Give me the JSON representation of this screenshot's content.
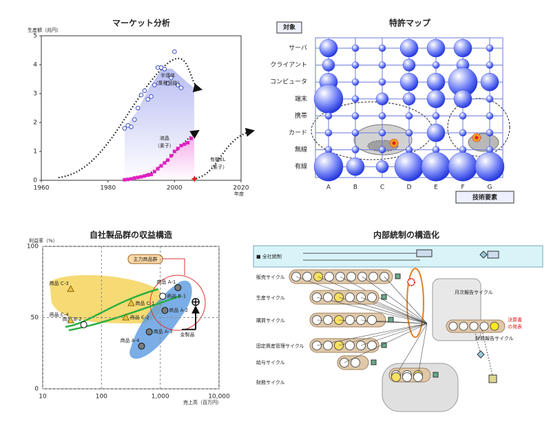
{
  "chart_data": [
    {
      "type": "scatter",
      "title": "マーケット分析",
      "y_label": "生産額（兆円）",
      "x_label": "年度",
      "xlim": [
        1960,
        2020
      ],
      "xticks": [
        1960,
        1980,
        2000,
        2020
      ],
      "ylim": [
        0,
        5
      ],
      "yticks": [
        0,
        1,
        2,
        3,
        4,
        5
      ],
      "grid": false,
      "series": [
        {
          "label": [
            "半導体",
            "（集積回路）"
          ],
          "marker": "circle-open",
          "color": "#3b4fc4",
          "x": [
            1985,
            1986,
            1987,
            1988,
            1989,
            1990,
            1991,
            1992,
            1993,
            1994,
            1995,
            1996,
            1997,
            1998,
            1999,
            2000,
            2001,
            2002
          ],
          "values": [
            1.8,
            1.9,
            1.85,
            2.1,
            2.5,
            2.95,
            3.1,
            2.8,
            2.9,
            3.3,
            3.9,
            3.9,
            3.85,
            3.35,
            3.55,
            4.45,
            3.3,
            3.2
          ]
        },
        {
          "label": [
            "液晶",
            "（素子）"
          ],
          "marker": "square",
          "color": "#e020c0",
          "x": [
            1985,
            1986,
            1987,
            1988,
            1989,
            1990,
            1991,
            1992,
            1993,
            1994,
            1995,
            1996,
            1997,
            1998,
            1999,
            2000,
            2001,
            2002,
            2003,
            2004,
            2005
          ],
          "values": [
            0.02,
            0.03,
            0.05,
            0.08,
            0.1,
            0.12,
            0.15,
            0.18,
            0.2,
            0.3,
            0.4,
            0.5,
            0.6,
            0.7,
            0.85,
            1.0,
            1.1,
            1.2,
            1.25,
            1.3,
            1.45
          ]
        },
        {
          "label": [
            "有機EL",
            "（素子）"
          ],
          "marker": "star",
          "color": "#e02020",
          "x": [
            2006
          ],
          "values": [
            0.05
          ]
        }
      ]
    },
    {
      "type": "bubble",
      "title": "特許マップ",
      "y_axis_title": "対象",
      "x_axis_title": "技術要素",
      "color": "#2a3ee8",
      "categories": [
        "A",
        "B",
        "C",
        "D",
        "E",
        "F",
        "G"
      ],
      "rows": [
        "サーバ",
        "クライアント",
        "コンピュータ",
        "端末",
        "携帯",
        "カード",
        "無線",
        "有線"
      ],
      "sizes": [
        [
          3,
          1,
          1,
          3,
          3,
          3,
          1
        ],
        [
          2,
          1,
          1,
          2,
          1,
          2,
          1
        ],
        [
          3,
          1,
          1,
          3,
          3,
          5,
          3
        ],
        [
          5,
          1,
          2,
          2,
          3,
          3,
          1
        ],
        [
          1,
          1,
          1,
          1,
          1,
          1,
          1
        ],
        [
          1,
          1,
          1,
          1,
          3,
          1,
          1
        ],
        [
          1,
          1,
          1,
          1,
          1,
          1,
          1
        ],
        [
          5,
          3,
          2,
          5,
          5,
          5,
          5
        ]
      ]
    },
    {
      "type": "scatter",
      "title": "自社製品群の収益構造",
      "y_label": "利益率（%）",
      "x_label": "売上高（百万円）",
      "xlog": true,
      "xlim": [
        10,
        10000
      ],
      "xticks": [
        10,
        100,
        {
          "value": 1000,
          "label": "1,000"
        },
        {
          "value": 10000,
          "label": "10,000"
        }
      ],
      "ylim": [
        0,
        100
      ],
      "yticks": [
        0,
        50,
        100
      ],
      "grid": true,
      "annotation": "主力商品群",
      "series": [
        {
          "marker": "circle",
          "color": "#7a7a7a",
          "labels": [
            "商品 A-1",
            "商品 A-2",
            "商品 A-3",
            "商品 A-4"
          ],
          "x": [
            2000,
            1200,
            650,
            480
          ],
          "values": [
            71,
            55,
            40,
            30
          ]
        },
        {
          "marker": "circle",
          "color": "#ffffff",
          "labels": [
            "商品 B-1",
            "商品 B-2"
          ],
          "x": [
            1100,
            50
          ],
          "values": [
            65,
            45
          ]
        },
        {
          "marker": "triangle",
          "color": "#e8c040",
          "labels": [
            "商品 C-1",
            "商品 C-2",
            "商品 C-3",
            "商品 C-4"
          ],
          "x": [
            320,
            260,
            30,
            30
          ],
          "values": [
            60,
            50,
            70,
            48
          ]
        },
        {
          "marker": "target",
          "color": "#ffffff",
          "labels": [
            "全製品"
          ],
          "x": [
            4000
          ],
          "values": [
            61
          ]
        }
      ]
    }
  ],
  "diagram": {
    "title": "内部統制の構造化",
    "company_control": "■ 全社統制",
    "cycles": [
      "販売サイクル",
      "生産サイクル",
      "購買サイクル",
      "固定資産管理サイクル",
      "給与サイクル",
      "財務サイクル"
    ],
    "monthly": "月次報告サイクル",
    "financial": "財務報告サイクル",
    "release": [
      "決算書",
      "の発表"
    ]
  }
}
